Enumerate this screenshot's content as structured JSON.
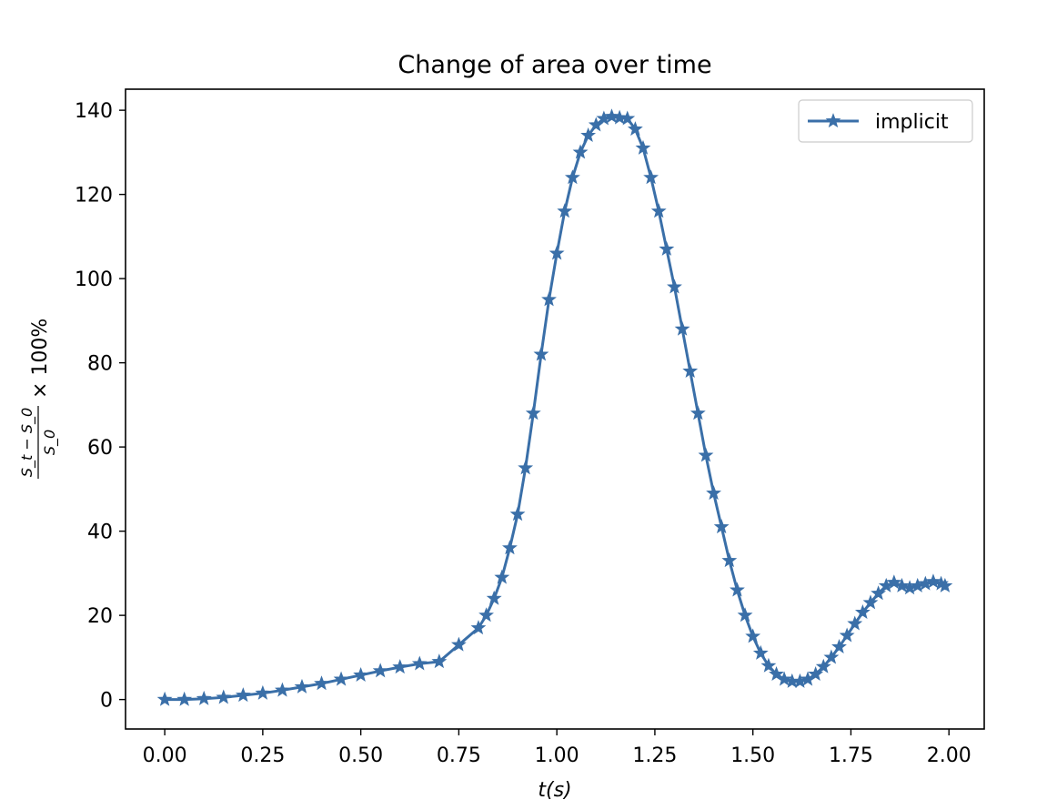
{
  "chart_data": {
    "type": "line",
    "title": "Change of area over time",
    "xlabel": "t(s)",
    "ylabel": "(S_t − S_0)/S_0 × 100%",
    "ylabel_parts": {
      "numerator": "S_t − S_0",
      "denominator": "S_0",
      "suffix": "× 100%"
    },
    "xlim": [
      -0.1,
      2.09
    ],
    "ylim": [
      -7,
      145
    ],
    "xticks": [
      0.0,
      0.25,
      0.5,
      0.75,
      1.0,
      1.25,
      1.5,
      1.75,
      2.0
    ],
    "xtick_labels": [
      "0.00",
      "0.25",
      "0.50",
      "0.75",
      "1.00",
      "1.25",
      "1.50",
      "1.75",
      "2.00"
    ],
    "yticks": [
      0,
      20,
      40,
      60,
      80,
      100,
      120,
      140
    ],
    "ytick_labels": [
      "0",
      "20",
      "40",
      "60",
      "80",
      "100",
      "120",
      "140"
    ],
    "legend_position": "top-right",
    "grid": false,
    "marker": "star",
    "series": [
      {
        "name": "implicit",
        "color": "#3a6fa8",
        "x": [
          0.0,
          0.05,
          0.1,
          0.15,
          0.2,
          0.25,
          0.3,
          0.35,
          0.4,
          0.45,
          0.5,
          0.55,
          0.6,
          0.65,
          0.7,
          0.75,
          0.8,
          0.82,
          0.84,
          0.86,
          0.88,
          0.9,
          0.92,
          0.94,
          0.96,
          0.98,
          1.0,
          1.02,
          1.04,
          1.06,
          1.08,
          1.1,
          1.12,
          1.14,
          1.16,
          1.18,
          1.2,
          1.22,
          1.24,
          1.26,
          1.28,
          1.3,
          1.32,
          1.34,
          1.36,
          1.38,
          1.4,
          1.42,
          1.44,
          1.46,
          1.48,
          1.5,
          1.52,
          1.54,
          1.56,
          1.58,
          1.6,
          1.62,
          1.64,
          1.66,
          1.68,
          1.7,
          1.72,
          1.74,
          1.76,
          1.78,
          1.8,
          1.82,
          1.84,
          1.86,
          1.88,
          1.9,
          1.92,
          1.94,
          1.96,
          1.98,
          1.99
        ],
        "y": [
          0,
          0,
          0.2,
          0.5,
          1.0,
          1.5,
          2.2,
          3.0,
          3.8,
          4.8,
          5.8,
          6.8,
          7.7,
          8.5,
          9.0,
          13.0,
          17.0,
          20.0,
          24.0,
          29.0,
          36.0,
          44.0,
          55.0,
          68.0,
          82.0,
          95.0,
          106.0,
          116.0,
          124.0,
          130.0,
          134.0,
          136.5,
          138.0,
          138.5,
          138.2,
          138.0,
          135.5,
          131.0,
          124.0,
          116.0,
          107.0,
          98.0,
          88.0,
          78.0,
          68.0,
          58.0,
          49.0,
          41.0,
          33.0,
          26.0,
          20.0,
          15.0,
          11.0,
          8.0,
          6.0,
          4.8,
          4.3,
          4.3,
          4.8,
          6.0,
          7.8,
          10.0,
          12.5,
          15.2,
          18.0,
          20.7,
          23.0,
          25.2,
          27.0,
          27.8,
          27.0,
          26.5,
          27.0,
          27.5,
          28.0,
          27.5,
          27.0
        ]
      }
    ]
  }
}
